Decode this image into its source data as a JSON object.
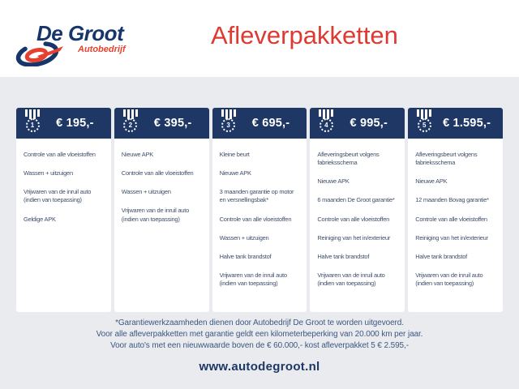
{
  "brand": {
    "name": "De Groot",
    "subtitle": "Autobedrijf"
  },
  "page": {
    "title": "Afleverpakketten"
  },
  "packages": [
    {
      "number": "1",
      "price": "€ 195,-",
      "items": [
        "Controle van alle vloeistoffen",
        "Wassen + uitzuigen",
        "Vrijwaren van de inruil auto (indien van toepassing)",
        "Geldige APK"
      ]
    },
    {
      "number": "2",
      "price": "€ 395,-",
      "items": [
        "Nieuwe APK",
        "Controle van alle vloeistoffen",
        "Wassen + uitzuigen",
        "Vrijwaren van de inruil auto (indien van toepassing)"
      ]
    },
    {
      "number": "3",
      "price": "€ 695,-",
      "items": [
        "Kleine beurt",
        "Nieuwe APK",
        "3 maanden garantie op motor en versnellingsbak*",
        "Controle van alle vloeistoffen",
        "Wassen + uitzuigen",
        "Halve tank brandstof",
        "Vrijwaren van de inruil auto (indien van toepassing)"
      ]
    },
    {
      "number": "4",
      "price": "€ 995,-",
      "items": [
        "Afleveringsbeurt volgens fabrieksschema",
        "Nieuwe APK",
        "6 maanden De Groot garantie*",
        "Controle van alle vloeistoffen",
        "Reiniging van het in/exterieur",
        "Halve tank brandstof",
        "Vrijwaren van de inruil auto (indien van toepassing)"
      ]
    },
    {
      "number": "5",
      "price": "€ 1.595,-",
      "items": [
        "Afleveringsbeurt volgens fabrieksschema",
        "Nieuwe APK",
        "12 maanden Bovag garantie*",
        "Controle van alle vloeistoffen",
        "Reiniging van het in/exterieur",
        "Halve tank brandstof",
        "Vrijwaren van de inruil auto (indien van toepassing)"
      ]
    }
  ],
  "footnotes": [
    "*Garantiewerkzaamheden dienen door Autobedrijf De Groot te worden uitgevoerd.",
    "Voor alle afleverpakketten met garantie geldt een kilometerbeperking van 20.000 km per jaar.",
    "Voor auto's met een nieuwwaarde boven de € 60.000,- kost afleverpakket 5 € 2.595,-"
  ],
  "website": "www.autodegroot.nl",
  "colors": {
    "accent_red": "#dd3a31",
    "navy": "#1e3765",
    "logo_navy": "#16356b",
    "logo_red": "#e8402e",
    "background": "#e9ebef"
  }
}
